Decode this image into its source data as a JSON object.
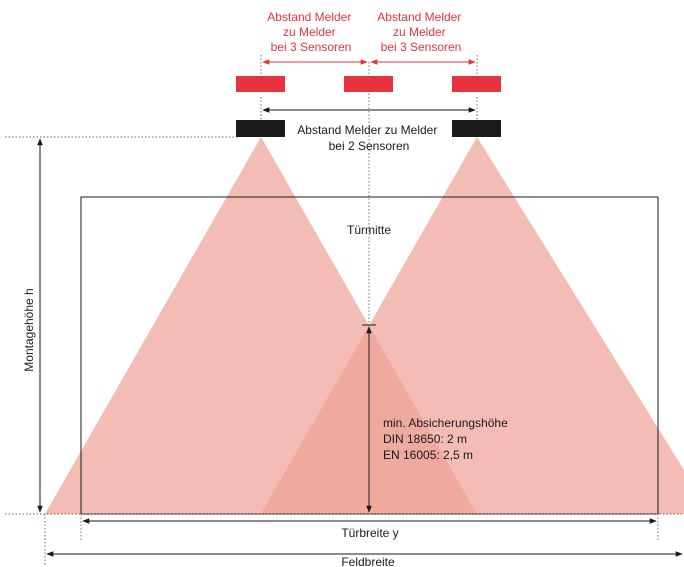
{
  "labels": {
    "spacing_3_left": [
      "Abstand Melder",
      "zu Melder",
      "bei 3 Sensoren"
    ],
    "spacing_3_right": [
      "Abstand Melder",
      "zu Melder",
      "bei 3 Sensoren"
    ],
    "spacing_2": [
      "Abstand Melder zu Melder",
      "bei 2 Sensoren"
    ],
    "door_center": "Türmitte",
    "mounting_height": "Montagehöhe h",
    "min_height": [
      "min. Absicherungshöhe",
      "DIN 18650:   2 m",
      "EN 16005:  2,5 m"
    ],
    "door_width": "Türbreite y",
    "field_width": "Feldbreite"
  },
  "colors": {
    "sensor_red": "#e8333f",
    "sensor_black": "#1a1a1a",
    "cone_fill": "#eea196",
    "overlap_fill": "#d9705e",
    "label_red": "#e8333f"
  }
}
